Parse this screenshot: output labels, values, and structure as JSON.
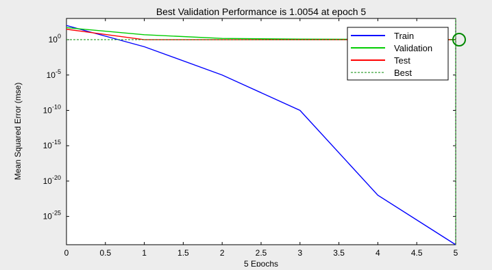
{
  "figure": {
    "background": "#ededed",
    "plot_background": "#ffffff"
  },
  "chart_data": {
    "type": "line",
    "title": "Best Validation Performance is 1.0054 at epoch 5",
    "xlabel": "5 Epochs",
    "ylabel": "Mean Squared Error  (mse)",
    "xlim": [
      0,
      5
    ],
    "ylim": [
      1e-29,
      1000.0
    ],
    "yscale": "log",
    "grid": false,
    "legend_position": "top-right",
    "x_ticks": [
      0,
      0.5,
      1,
      1.5,
      2,
      2.5,
      3,
      3.5,
      4,
      4.5,
      5
    ],
    "x_tick_labels": [
      "0",
      "0.5",
      "1",
      "1.5",
      "2",
      "2.5",
      "3",
      "3.5",
      "4",
      "4.5",
      "5"
    ],
    "y_ticks": [
      {
        "base": "10",
        "exp": "0",
        "value": 1
      },
      {
        "base": "10",
        "exp": "-5",
        "value": 1e-05
      },
      {
        "base": "10",
        "exp": "-10",
        "value": 1e-10
      },
      {
        "base": "10",
        "exp": "-15",
        "value": 1e-15
      },
      {
        "base": "10",
        "exp": "-20",
        "value": 1e-20
      },
      {
        "base": "10",
        "exp": "-25",
        "value": 1e-25
      }
    ],
    "x": [
      0,
      1,
      2,
      3,
      4,
      5
    ],
    "series": [
      {
        "name": "Train",
        "color": "#0000ff",
        "style": "solid",
        "values": [
          100,
          0.1,
          1e-05,
          1e-10,
          1e-22,
          1e-29
        ]
      },
      {
        "name": "Validation",
        "color": "#00cc00",
        "style": "solid",
        "values": [
          50,
          5,
          1.5,
          1.2,
          1.1,
          1.0054
        ]
      },
      {
        "name": "Test",
        "color": "#ff0000",
        "style": "solid",
        "values": [
          30,
          1,
          1,
          1,
          1,
          1
        ]
      },
      {
        "name": "Best",
        "color": "#008800",
        "style": "dashed",
        "values": [
          1.0054,
          1.0054,
          1.0054,
          1.0054,
          1.0054,
          1.0054
        ]
      }
    ],
    "best_marker": {
      "x": 5,
      "y": 1.0054,
      "color": "#008800",
      "shape": "circle"
    },
    "best_vline": {
      "x": 5,
      "color": "#008800",
      "style": "dashed"
    }
  }
}
